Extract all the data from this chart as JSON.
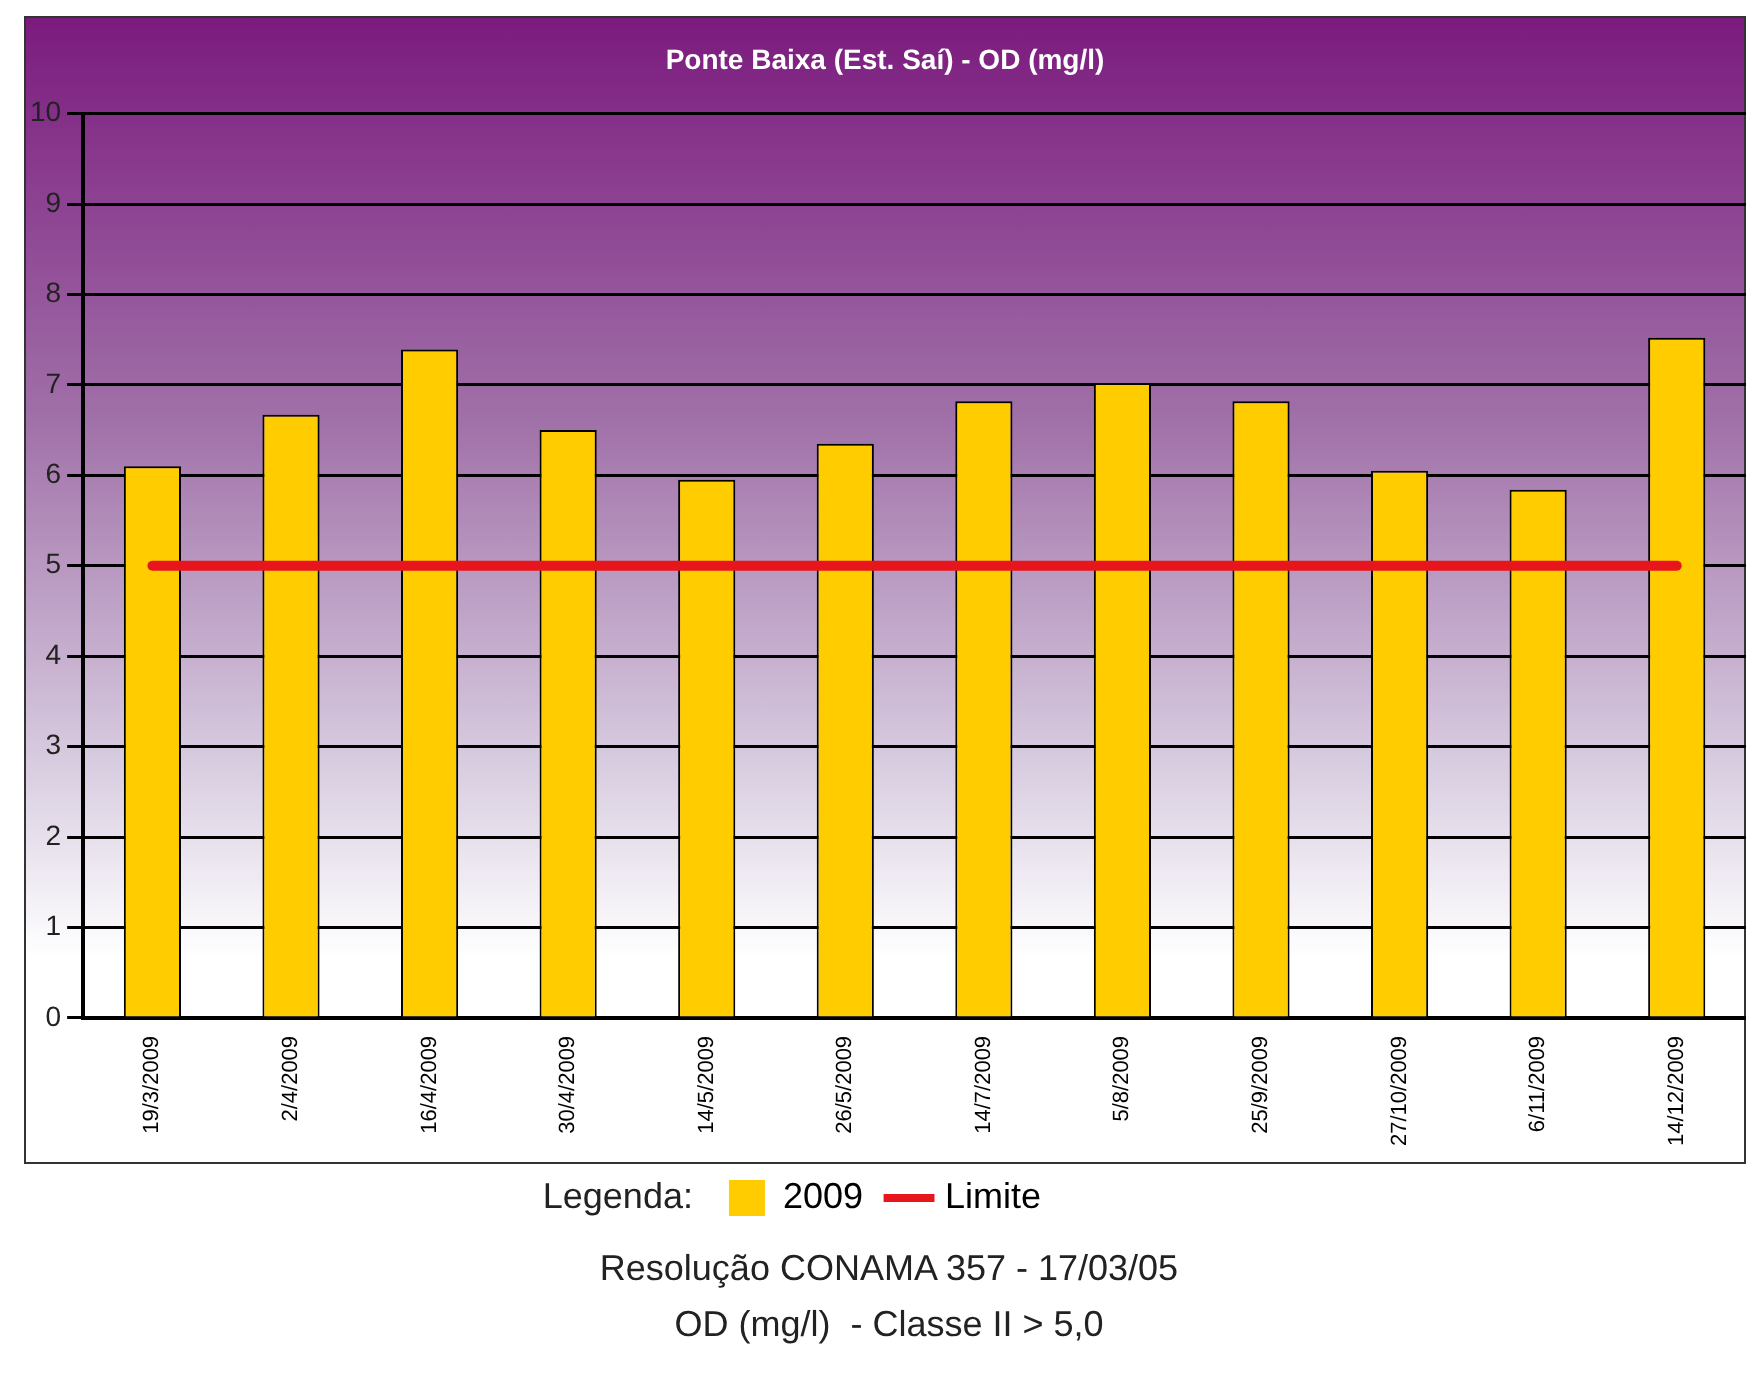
{
  "chart_data": {
    "type": "bar",
    "title": "Ponte Baixa (Est. Saí) - OD (mg/l)",
    "categories": [
      "19/3/2009",
      "2/4/2009",
      "16/4/2009",
      "30/4/2009",
      "14/5/2009",
      "26/5/2009",
      "14/7/2009",
      "5/8/2009",
      "25/9/2009",
      "27/10/2009",
      "6/11/2009",
      "14/12/2009"
    ],
    "series": [
      {
        "name": "2009",
        "color": "#ffcc00",
        "values": [
          6.1,
          6.67,
          7.39,
          6.5,
          5.95,
          6.35,
          6.82,
          7.02,
          6.82,
          6.05,
          5.84,
          7.52
        ]
      }
    ],
    "ylim": [
      0,
      10
    ],
    "yticks": [
      0,
      1,
      2,
      3,
      4,
      5,
      6,
      7,
      8,
      9,
      10
    ],
    "grid": "y",
    "ref_lines": [
      {
        "axis": "y",
        "value": 5,
        "label": "Limite",
        "color": "#e8161c"
      }
    ],
    "legend": "bottom",
    "legend_title": "Legenda:",
    "annotations": [
      "Resolução CONAMA 357 - 17/03/05",
      "OD (mg/l)  - Classe II > 5,0"
    ]
  }
}
